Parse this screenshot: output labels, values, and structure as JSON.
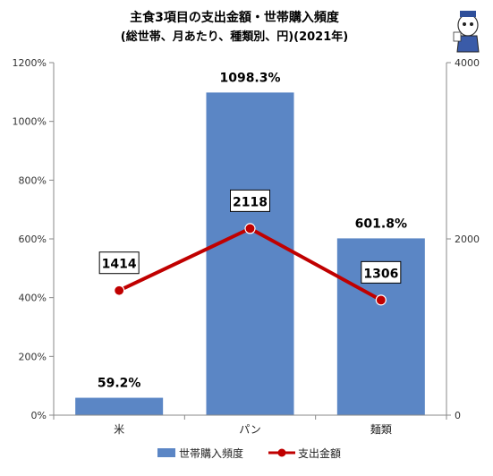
{
  "chart_data": {
    "type": "bar+line",
    "title": "主食3項目の支出金額・世帯購入頻度",
    "subtitle": "(総世帯、月あたり、種類別、円)(2021年)",
    "categories": [
      "米",
      "パン",
      "麺類"
    ],
    "series": [
      {
        "name": "世帯購入頻度",
        "type": "bar",
        "axis": "left",
        "values": [
          59.2,
          1098.3,
          601.8
        ],
        "labels": [
          "59.2%",
          "1098.3%",
          "601.8%"
        ],
        "color": "#5B86C5"
      },
      {
        "name": "支出金額",
        "type": "line",
        "axis": "right",
        "values": [
          1414,
          2118,
          1306
        ],
        "labels": [
          "1414",
          "2118",
          "1306"
        ],
        "color": "#C00000"
      }
    ],
    "left_axis": {
      "ylim": [
        0,
        1200
      ],
      "ticks": [
        "0%",
        "200%",
        "400%",
        "600%",
        "800%",
        "1000%",
        "1200%"
      ]
    },
    "right_axis": {
      "ylim": [
        0,
        4000
      ],
      "ticks": [
        "0",
        "2000",
        "4000"
      ]
    },
    "grid": false,
    "legend_position": "bottom"
  }
}
